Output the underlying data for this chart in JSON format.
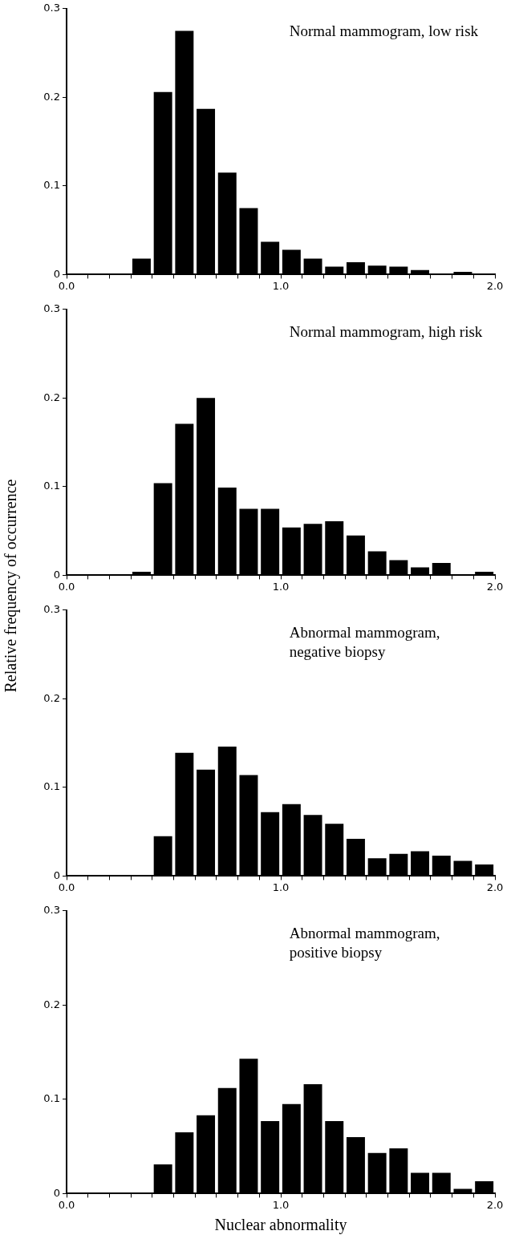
{
  "chart_data": [
    {
      "type": "histogram",
      "annotations": [
        "Normal mammogram, low risk"
      ],
      "color": "#000000",
      "bins": [
        0,
        0.1,
        0.2,
        0.3,
        0.4,
        0.5,
        0.6,
        0.7,
        0.8,
        0.9,
        1.0,
        1.1,
        1.2,
        1.3,
        1.4,
        1.5,
        1.6,
        1.7,
        1.8,
        1.9,
        2.0
      ],
      "values": [
        0,
        0,
        0,
        0.018,
        0.206,
        0.275,
        0.187,
        0.115,
        0.075,
        0.037,
        0.028,
        0.018,
        0.009,
        0.014,
        0.01,
        0.009,
        0.005,
        0,
        0.003,
        0
      ],
      "xlim": [
        0,
        2
      ],
      "ylim": [
        0,
        0.3
      ],
      "xticks": [
        {
          "value": 0,
          "label": "0.0"
        },
        {
          "value": 0.1,
          "label": null
        },
        {
          "value": 0.2,
          "label": null
        },
        {
          "value": 0.3,
          "label": null
        },
        {
          "value": 0.4,
          "label": null
        },
        {
          "value": 0.5,
          "label": null
        },
        {
          "value": 0.6,
          "label": null
        },
        {
          "value": 0.7,
          "label": null
        },
        {
          "value": 0.8,
          "label": null
        },
        {
          "value": 0.9,
          "label": null
        },
        {
          "value": 1,
          "label": "1.0"
        },
        {
          "value": 1.1,
          "label": null
        },
        {
          "value": 1.2,
          "label": null
        },
        {
          "value": 1.3,
          "label": null
        },
        {
          "value": 1.4,
          "label": null
        },
        {
          "value": 1.5,
          "label": null
        },
        {
          "value": 1.6,
          "label": null
        },
        {
          "value": 1.7,
          "label": null
        },
        {
          "value": 1.8,
          "label": null
        },
        {
          "value": 1.9,
          "label": null
        },
        {
          "value": 2,
          "label": "2.0"
        }
      ],
      "yticks": [
        0,
        0.1,
        0.2,
        0.3
      ]
    },
    {
      "type": "histogram",
      "annotations": [
        "Normal mammogram, high risk"
      ],
      "color": "#000000",
      "ylabel": "Relative frequency of occurrence",
      "bins": [
        0,
        0.1,
        0.2,
        0.3,
        0.4,
        0.5,
        0.6,
        0.7,
        0.8,
        0.9,
        1.0,
        1.1,
        1.2,
        1.3,
        1.4,
        1.5,
        1.6,
        1.7,
        1.8,
        1.9,
        2.0
      ],
      "values": [
        0,
        0,
        0,
        0.004,
        0.104,
        0.171,
        0.2,
        0.099,
        0.075,
        0.075,
        0.054,
        0.058,
        0.061,
        0.045,
        0.027,
        0.017,
        0.009,
        0.014,
        0,
        0.004
      ],
      "xlim": [
        0,
        2
      ],
      "ylim": [
        0,
        0.3
      ],
      "xticks": [
        {
          "value": 0,
          "label": "0.0"
        },
        {
          "value": 0.1,
          "label": null
        },
        {
          "value": 0.2,
          "label": null
        },
        {
          "value": 0.3,
          "label": null
        },
        {
          "value": 0.4,
          "label": null
        },
        {
          "value": 0.5,
          "label": null
        },
        {
          "value": 0.6,
          "label": null
        },
        {
          "value": 0.7,
          "label": null
        },
        {
          "value": 0.8,
          "label": null
        },
        {
          "value": 0.9,
          "label": null
        },
        {
          "value": 1,
          "label": "1.0"
        },
        {
          "value": 1.1,
          "label": null
        },
        {
          "value": 1.2,
          "label": null
        },
        {
          "value": 1.3,
          "label": null
        },
        {
          "value": 1.4,
          "label": null
        },
        {
          "value": 1.5,
          "label": null
        },
        {
          "value": 1.6,
          "label": null
        },
        {
          "value": 1.7,
          "label": null
        },
        {
          "value": 1.8,
          "label": null
        },
        {
          "value": 1.9,
          "label": null
        },
        {
          "value": 2,
          "label": "2.0"
        }
      ],
      "yticks": [
        0,
        0.1,
        0.2,
        0.3
      ]
    },
    {
      "type": "histogram",
      "annotations": [
        "Abnormal mammogram, negative biopsy"
      ],
      "color": "#000000",
      "bins": [
        0,
        0.1,
        0.2,
        0.3,
        0.4,
        0.5,
        0.6,
        0.7,
        0.8,
        0.9,
        1.0,
        1.1,
        1.2,
        1.3,
        1.4,
        1.5,
        1.6,
        1.7,
        1.8,
        1.9,
        2.0
      ],
      "values": [
        0,
        0,
        0,
        0,
        0.045,
        0.139,
        0.12,
        0.146,
        0.114,
        0.072,
        0.081,
        0.069,
        0.059,
        0.042,
        0.02,
        0.025,
        0.028,
        0.023,
        0.017,
        0.013
      ],
      "xlim": [
        0,
        2
      ],
      "ylim": [
        0,
        0.3
      ],
      "xticks": [
        {
          "value": 0,
          "label": "0.0"
        },
        {
          "value": 0.1,
          "label": null
        },
        {
          "value": 0.2,
          "label": null
        },
        {
          "value": 0.3,
          "label": null
        },
        {
          "value": 0.4,
          "label": null
        },
        {
          "value": 0.5,
          "label": null
        },
        {
          "value": 0.6,
          "label": null
        },
        {
          "value": 0.7,
          "label": null
        },
        {
          "value": 0.8,
          "label": null
        },
        {
          "value": 0.9,
          "label": null
        },
        {
          "value": 1,
          "label": "1.0"
        },
        {
          "value": 1.1,
          "label": null
        },
        {
          "value": 1.2,
          "label": null
        },
        {
          "value": 1.3,
          "label": null
        },
        {
          "value": 1.4,
          "label": null
        },
        {
          "value": 1.5,
          "label": null
        },
        {
          "value": 1.6,
          "label": null
        },
        {
          "value": 1.7,
          "label": null
        },
        {
          "value": 1.8,
          "label": null
        },
        {
          "value": 1.9,
          "label": null
        },
        {
          "value": 2,
          "label": "2.0"
        }
      ],
      "yticks": [
        0,
        0.1,
        0.2,
        0.3
      ]
    },
    {
      "type": "histogram",
      "annotations": [
        "Abnormal mammogram, positive biopsy"
      ],
      "color": "#000000",
      "xlabel": "Nuclear abnormality",
      "bins": [
        0,
        0.1,
        0.2,
        0.3,
        0.4,
        0.5,
        0.6,
        0.7,
        0.8,
        0.9,
        1.0,
        1.1,
        1.2,
        1.3,
        1.4,
        1.5,
        1.6,
        1.7,
        1.8,
        1.9,
        2.0
      ],
      "values": [
        0,
        0,
        0,
        0,
        0.031,
        0.065,
        0.083,
        0.112,
        0.143,
        0.077,
        0.095,
        0.116,
        0.077,
        0.06,
        0.043,
        0.048,
        0.022,
        0.022,
        0.005,
        0.013
      ],
      "xlim": [
        0,
        2
      ],
      "ylim": [
        0,
        0.3
      ],
      "xticks": [
        {
          "value": 0,
          "label": "0.0"
        },
        {
          "value": 0.1,
          "label": null
        },
        {
          "value": 0.2,
          "label": null
        },
        {
          "value": 0.3,
          "label": null
        },
        {
          "value": 0.4,
          "label": null
        },
        {
          "value": 0.5,
          "label": null
        },
        {
          "value": 0.6,
          "label": null
        },
        {
          "value": 0.7,
          "label": null
        },
        {
          "value": 0.8,
          "label": null
        },
        {
          "value": 0.9,
          "label": null
        },
        {
          "value": 1,
          "label": "1.0"
        },
        {
          "value": 1.1,
          "label": null
        },
        {
          "value": 1.2,
          "label": null
        },
        {
          "value": 1.3,
          "label": null
        },
        {
          "value": 1.4,
          "label": null
        },
        {
          "value": 1.5,
          "label": null
        },
        {
          "value": 1.6,
          "label": null
        },
        {
          "value": 1.7,
          "label": null
        },
        {
          "value": 1.8,
          "label": null
        },
        {
          "value": 1.9,
          "label": null
        },
        {
          "value": 2,
          "label": "2.0"
        }
      ],
      "yticks": [
        0,
        0.1,
        0.2,
        0.3
      ]
    }
  ]
}
